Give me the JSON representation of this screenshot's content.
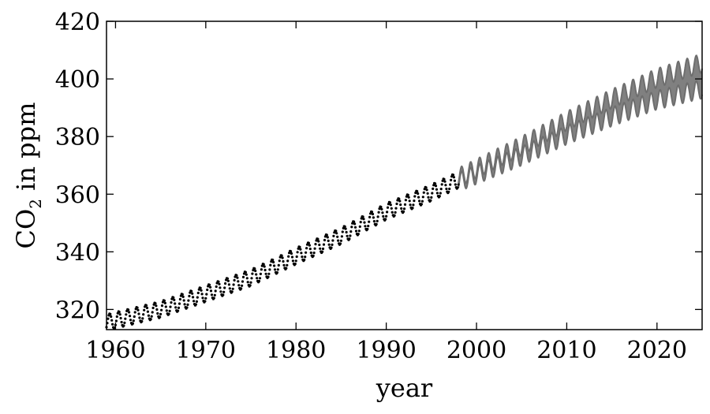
{
  "chart_data": {
    "type": "line",
    "xlabel": "year",
    "ylabel_main": "CO",
    "ylabel_sub": "2",
    "ylabel_rest": " in ppm",
    "xlim": [
      1959,
      2025
    ],
    "ylim": [
      313,
      420
    ],
    "xticks": [
      1960,
      1970,
      1980,
      1990,
      2000,
      2010,
      2020
    ],
    "yticks": [
      320,
      340,
      360,
      380,
      400,
      420
    ],
    "grid": false,
    "observed": {
      "style": "dots",
      "color": "#000000",
      "x_range": [
        1959.0,
        1998.0
      ],
      "trend_points": [
        [
          1959,
          315.5
        ],
        [
          1965,
          320
        ],
        [
          1970,
          325.5
        ],
        [
          1975,
          331
        ],
        [
          1980,
          338.5
        ],
        [
          1985,
          345.5
        ],
        [
          1990,
          354
        ],
        [
          1995,
          360.5
        ],
        [
          1998,
          365
        ]
      ],
      "seasonal_amplitude": 2.8
    },
    "forecast": {
      "style": "band",
      "color": "#808080",
      "x_range": [
        1998.0,
        2025.0
      ],
      "trend_points": [
        [
          1998,
          365
        ],
        [
          2005,
          375
        ],
        [
          2010,
          383
        ],
        [
          2015,
          390
        ],
        [
          2020,
          396.5
        ],
        [
          2025,
          401
        ]
      ],
      "seasonal_amplitude": 3.3,
      "uncertainty_start": 0.8,
      "uncertainty_end": 4.5
    }
  }
}
